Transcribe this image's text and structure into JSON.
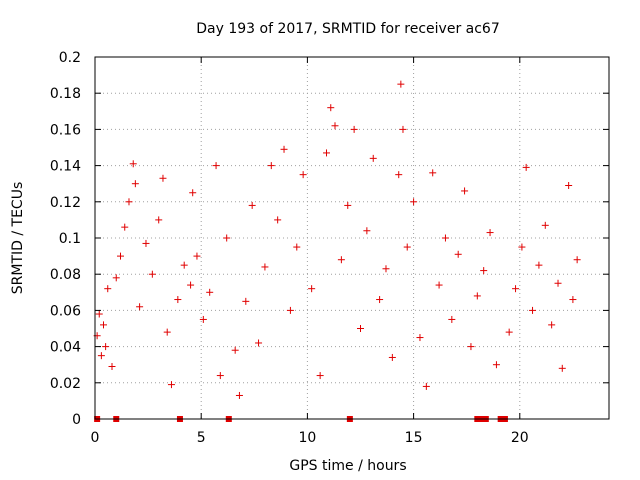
{
  "chart_data": {
    "type": "scatter",
    "title": "Day 193 of 2017, SRMTID for receiver ac67",
    "xlabel": "GPS time / hours",
    "ylabel": "SRMTID / TECUs",
    "xlim": [
      0,
      24.2
    ],
    "ylim": [
      0,
      0.2
    ],
    "xticks": [
      0,
      5,
      10,
      15,
      20
    ],
    "yticks": [
      0,
      0.02,
      0.04,
      0.06,
      0.08,
      0.1,
      0.12,
      0.14,
      0.16,
      0.18,
      0.2
    ],
    "xtick_labels": [
      "0",
      "5",
      "10",
      "15",
      "20"
    ],
    "ytick_labels": [
      "0",
      "0.02",
      "0.04",
      "0.06",
      "0.08",
      "0.1",
      "0.12",
      "0.14",
      "0.16",
      "0.18",
      "0.2"
    ],
    "grid": true,
    "marker": "plus",
    "color": "#e00000",
    "x_range_with_data": [
      0,
      22.8
    ],
    "points": [
      [
        0.1,
        0.046
      ],
      [
        0.2,
        0.058
      ],
      [
        0.3,
        0.035
      ],
      [
        0.4,
        0.052
      ],
      [
        0.5,
        0.04
      ],
      [
        0.6,
        0.072
      ],
      [
        0.8,
        0.029
      ],
      [
        1.0,
        0.078
      ],
      [
        1.2,
        0.09
      ],
      [
        1.4,
        0.106
      ],
      [
        1.6,
        0.12
      ],
      [
        1.8,
        0.141
      ],
      [
        1.9,
        0.13
      ],
      [
        2.1,
        0.062
      ],
      [
        2.4,
        0.097
      ],
      [
        2.7,
        0.08
      ],
      [
        3.0,
        0.11
      ],
      [
        3.2,
        0.133
      ],
      [
        3.4,
        0.048
      ],
      [
        3.6,
        0.019
      ],
      [
        3.9,
        0.066
      ],
      [
        4.2,
        0.085
      ],
      [
        4.5,
        0.074
      ],
      [
        4.6,
        0.125
      ],
      [
        4.8,
        0.09
      ],
      [
        5.1,
        0.055
      ],
      [
        5.4,
        0.07
      ],
      [
        5.7,
        0.14
      ],
      [
        5.9,
        0.024
      ],
      [
        6.2,
        0.1
      ],
      [
        6.6,
        0.038
      ],
      [
        6.8,
        0.013
      ],
      [
        7.1,
        0.065
      ],
      [
        7.4,
        0.118
      ],
      [
        7.7,
        0.042
      ],
      [
        8.0,
        0.084
      ],
      [
        8.3,
        0.14
      ],
      [
        8.6,
        0.11
      ],
      [
        8.9,
        0.149
      ],
      [
        9.2,
        0.06
      ],
      [
        9.5,
        0.095
      ],
      [
        9.8,
        0.135
      ],
      [
        10.2,
        0.072
      ],
      [
        10.6,
        0.024
      ],
      [
        10.9,
        0.147
      ],
      [
        11.1,
        0.172
      ],
      [
        11.3,
        0.162
      ],
      [
        11.6,
        0.088
      ],
      [
        11.9,
        0.118
      ],
      [
        12.2,
        0.16
      ],
      [
        12.5,
        0.05
      ],
      [
        12.8,
        0.104
      ],
      [
        13.1,
        0.144
      ],
      [
        13.4,
        0.066
      ],
      [
        13.7,
        0.083
      ],
      [
        14.0,
        0.034
      ],
      [
        14.3,
        0.135
      ],
      [
        14.4,
        0.185
      ],
      [
        14.5,
        0.16
      ],
      [
        14.7,
        0.095
      ],
      [
        15.0,
        0.12
      ],
      [
        15.3,
        0.045
      ],
      [
        15.6,
        0.018
      ],
      [
        15.9,
        0.136
      ],
      [
        16.2,
        0.074
      ],
      [
        16.5,
        0.1
      ],
      [
        16.8,
        0.055
      ],
      [
        17.1,
        0.091
      ],
      [
        17.4,
        0.126
      ],
      [
        17.7,
        0.04
      ],
      [
        18.0,
        0.068
      ],
      [
        18.3,
        0.082
      ],
      [
        18.6,
        0.103
      ],
      [
        18.9,
        0.03
      ],
      [
        19.5,
        0.048
      ],
      [
        19.8,
        0.072
      ],
      [
        20.1,
        0.095
      ],
      [
        20.3,
        0.139
      ],
      [
        20.6,
        0.06
      ],
      [
        20.9,
        0.085
      ],
      [
        21.2,
        0.107
      ],
      [
        21.5,
        0.052
      ],
      [
        21.8,
        0.075
      ],
      [
        22.0,
        0.028
      ],
      [
        22.3,
        0.129
      ],
      [
        22.5,
        0.066
      ],
      [
        22.7,
        0.088
      ]
    ],
    "zero_markers_x": [
      0.1,
      1.0,
      4.0,
      6.3,
      12.0,
      18.0,
      18.2,
      18.4,
      19.1,
      19.3
    ]
  }
}
